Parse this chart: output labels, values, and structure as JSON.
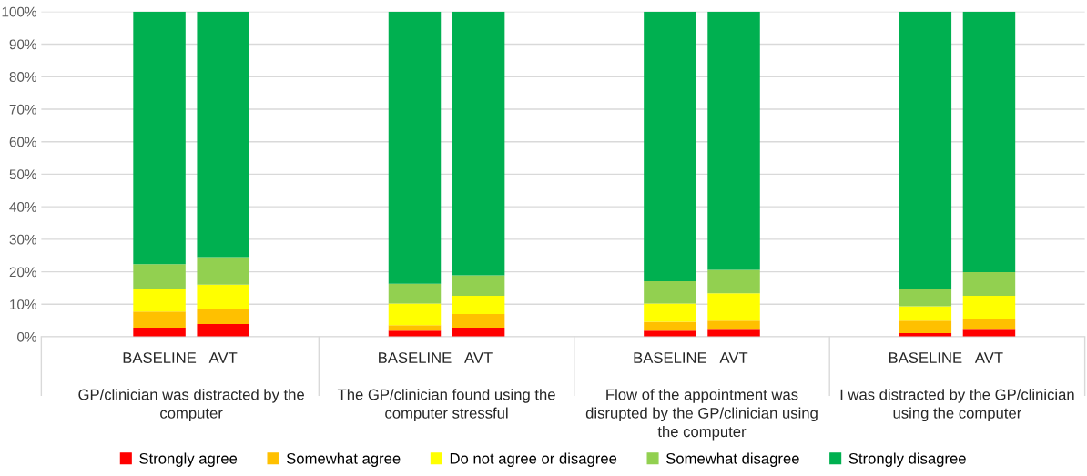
{
  "chart_data": {
    "type": "bar",
    "stacked": true,
    "categories": [
      "BASELINE",
      "AVT",
      "BASELINE",
      "AVT",
      "BASELINE",
      "AVT",
      "BASELINE",
      "AVT"
    ],
    "annotations": [
      "GP/clinician was distracted by the computer",
      "The GP/clinician found using the computer stressful",
      "Flow of the appointment was disrupted by the GP/clinician using the computer",
      "I was distracted by the GP/clinician using the computer"
    ],
    "series": [
      {
        "name": "Strongly agree",
        "color": "#ff0000",
        "values": [
          2.8,
          3.9,
          1.9,
          2.8,
          1.9,
          2.2,
          1.1,
          2.2
        ]
      },
      {
        "name": "Somewhat agree",
        "color": "#ffc000",
        "values": [
          5.0,
          4.5,
          1.7,
          4.2,
          2.7,
          2.8,
          3.9,
          3.4
        ]
      },
      {
        "name": "Do not agree or disagree",
        "color": "#ffff00",
        "values": [
          6.9,
          7.6,
          6.6,
          5.6,
          5.6,
          8.4,
          4.4,
          7.0
        ]
      },
      {
        "name": "Somewhat disagree",
        "color": "#92d050",
        "values": [
          7.6,
          8.5,
          6.1,
          6.3,
          6.9,
          7.2,
          5.3,
          7.3
        ]
      },
      {
        "name": "Strongly disagree",
        "color": "#00b050",
        "values": [
          77.7,
          75.5,
          83.7,
          81.1,
          82.9,
          79.4,
          85.3,
          80.1
        ]
      }
    ],
    "ylim": [
      0,
      100
    ],
    "yticks": [
      {
        "value": 0,
        "label": "0%"
      },
      {
        "value": 10,
        "label": "10%"
      },
      {
        "value": 20,
        "label": "20%"
      },
      {
        "value": 30,
        "label": "30%"
      },
      {
        "value": 40,
        "label": "40%"
      },
      {
        "value": 50,
        "label": "50%"
      },
      {
        "value": 60,
        "label": "60%"
      },
      {
        "value": 70,
        "label": "70%"
      },
      {
        "value": 80,
        "label": "80%"
      },
      {
        "value": 90,
        "label": "90%"
      },
      {
        "value": 100,
        "label": "100%"
      }
    ],
    "grid": "y",
    "legend": "bottom"
  }
}
